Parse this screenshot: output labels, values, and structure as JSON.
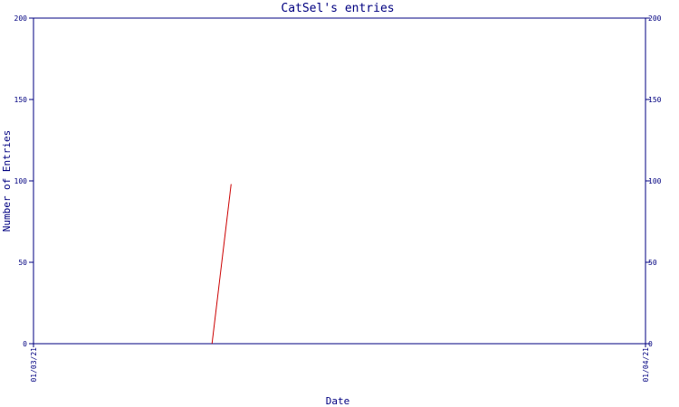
{
  "colors": {
    "background": "#ffffff",
    "axis": "#000080",
    "text": "#000080",
    "series": "#cc0000"
  },
  "chart_data": {
    "type": "line",
    "title": "CatSel's entries",
    "xlabel": "Date",
    "ylabel": "Number of Entries",
    "ylim": [
      0,
      200
    ],
    "y_ticks": [
      0,
      50,
      100,
      150,
      200
    ],
    "x_ticks": [
      "01/03/21",
      "01/04/21"
    ],
    "x_range": [
      "2021-01-03",
      "2021-01-04"
    ],
    "grid": false,
    "series": [
      {
        "x": [
          "2021-01-03T07:00",
          "2021-01-03T07:45"
        ],
        "values": [
          0,
          98
        ]
      }
    ]
  }
}
